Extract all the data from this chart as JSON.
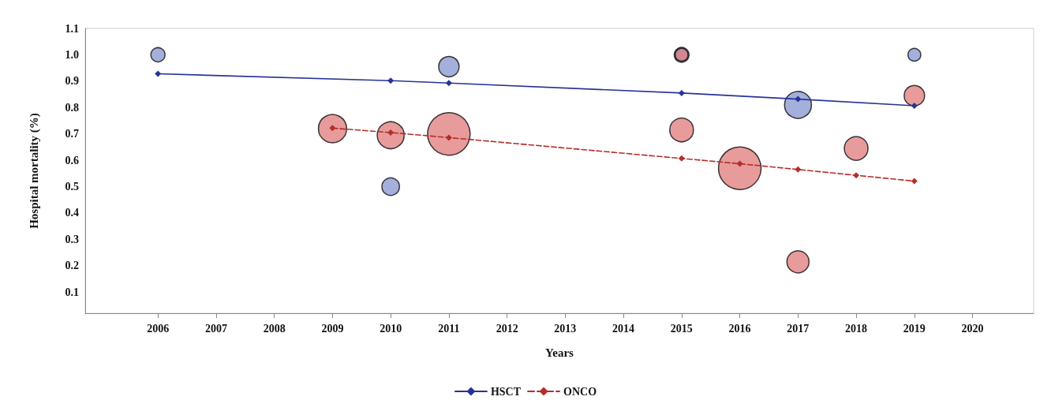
{
  "chart_data": {
    "type": "bubble",
    "xlabel": "Years",
    "ylabel": "Hospital mortality (%)",
    "xlim": [
      2004.75,
      2021.05
    ],
    "xticks": [
      2006,
      2007,
      2008,
      2009,
      2010,
      2011,
      2012,
      2013,
      2014,
      2015,
      2016,
      2017,
      2018,
      2019,
      2020
    ],
    "ylim": [
      0.02,
      1.1
    ],
    "yticks": [
      0.1,
      0.2,
      0.3,
      0.4,
      0.5,
      0.6,
      0.7,
      0.8,
      0.9,
      {
        "value": 1,
        "label": "1.0"
      },
      1.1
    ],
    "grid": false,
    "legend": "bottom",
    "series": [
      {
        "color": "#8595cf",
        "marker": "circle",
        "x": [
          2006,
          2010,
          2011,
          2015,
          2017,
          2019
        ],
        "values": [
          1.0,
          0.5,
          0.955,
          1.0,
          0.81,
          1.0
        ],
        "sizes": [
          0.11,
          0.17,
          0.23,
          0.12,
          0.4,
          0.09
        ]
      },
      {
        "color": "#e07a7a",
        "marker": "circle",
        "x": [
          2009,
          2010,
          2011,
          2015,
          2015,
          2016,
          2017,
          2018,
          2019
        ],
        "values": [
          0.72,
          0.695,
          0.7,
          1.0,
          0.715,
          0.57,
          0.215,
          0.645,
          0.845
        ],
        "sizes": [
          0.44,
          0.4,
          1,
          0.09,
          0.31,
          1,
          0.27,
          0.31,
          0.23
        ]
      },
      {
        "type": "line",
        "name": "HSCT",
        "color": "#27339a",
        "marker": "diamond",
        "line_style": "solid",
        "x": [
          2006,
          2010,
          2011,
          2015,
          2017,
          2019
        ],
        "values": [
          0.928,
          0.902,
          0.893,
          0.855,
          0.832,
          0.807
        ]
      },
      {
        "type": "line",
        "name": "ONCO",
        "color": "#b32e2a",
        "marker": "diamond",
        "line_style": "dashed",
        "x": [
          2009,
          2010,
          2011,
          2015,
          2016,
          2017,
          2018,
          2019
        ],
        "values": [
          0.722,
          0.705,
          0.686,
          0.607,
          0.587,
          0.565,
          0.543,
          0.521
        ]
      }
    ]
  }
}
